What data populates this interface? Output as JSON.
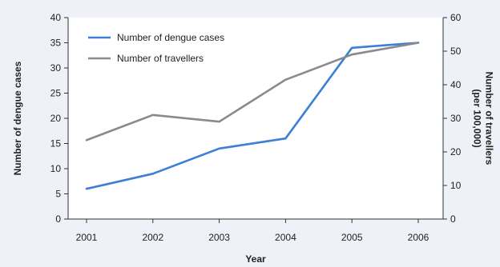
{
  "chart_data": {
    "type": "line",
    "categories": [
      "2001",
      "2002",
      "2003",
      "2004",
      "2005",
      "2006"
    ],
    "xlabel": "Year",
    "ylabel_left": "Number of dengue cases",
    "ylabel_right": "Number of travellers (per 100,000)",
    "ylim_left": [
      0,
      40
    ],
    "yticks_left": [
      0,
      5,
      10,
      15,
      20,
      25,
      30,
      35,
      40
    ],
    "ylim_right": [
      0,
      60
    ],
    "yticks_right": [
      0,
      10,
      20,
      30,
      40,
      50,
      60
    ],
    "grid": false,
    "legend_position": "top-left",
    "series": [
      {
        "name": "Number of dengue cases",
        "axis": "left",
        "color": "#3b7fd6",
        "values": [
          6,
          9,
          14,
          16,
          34,
          35
        ]
      },
      {
        "name": "Number of travellers",
        "axis": "right",
        "color": "#8a8a8a",
        "values": [
          23.5,
          31,
          29,
          41.5,
          49,
          52.5
        ]
      }
    ]
  }
}
